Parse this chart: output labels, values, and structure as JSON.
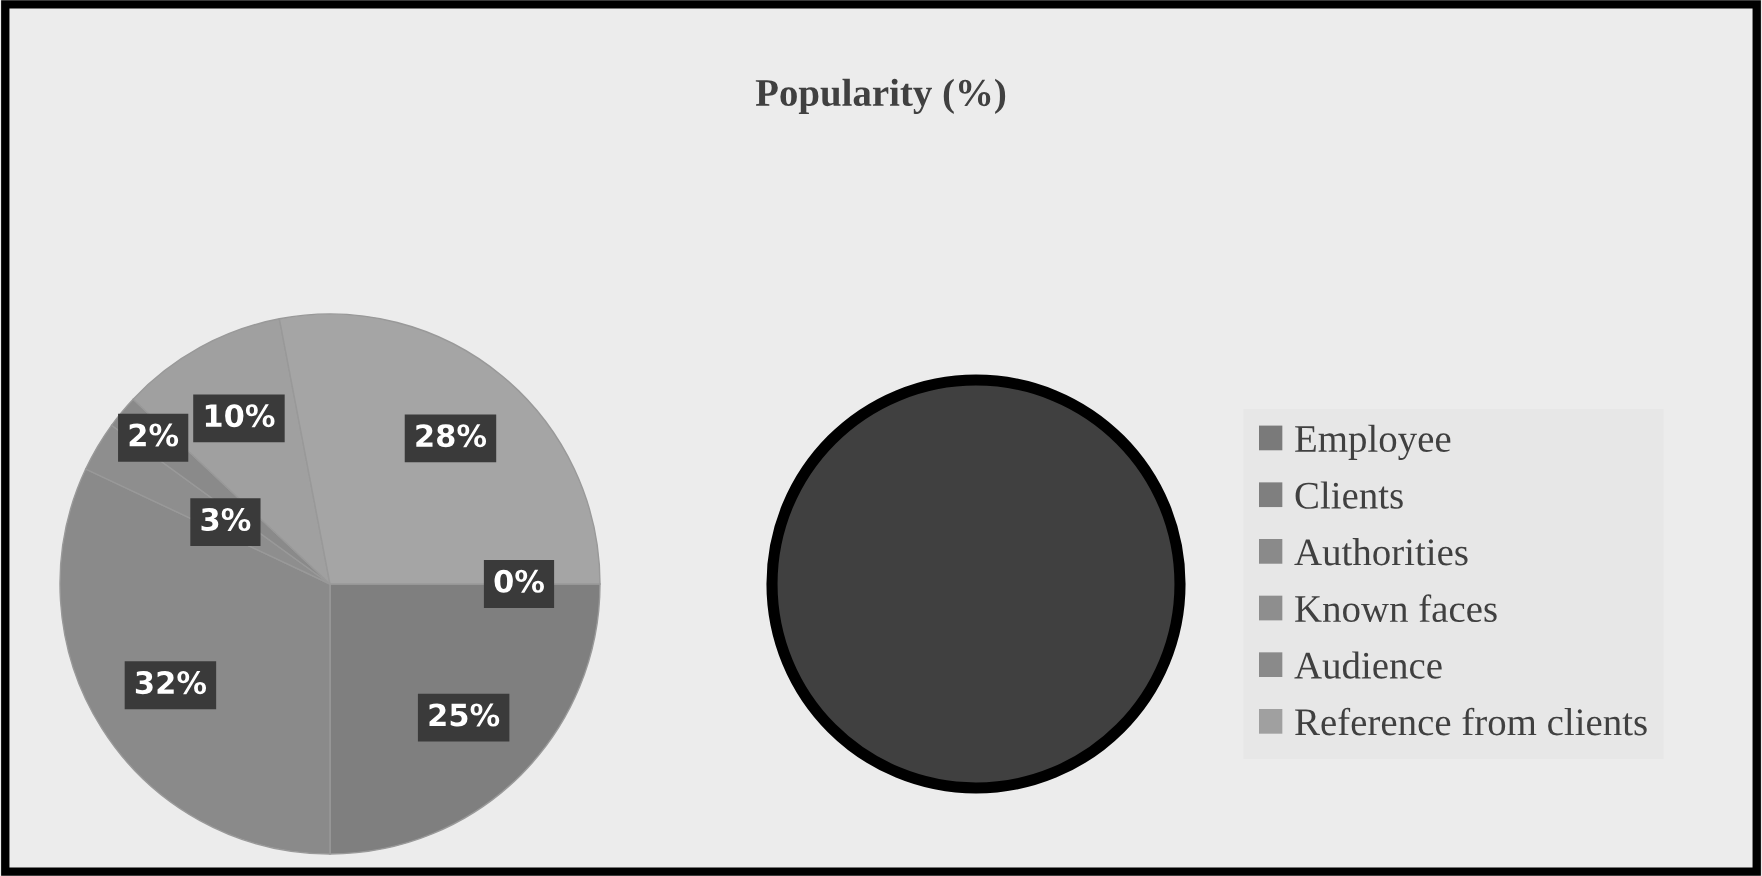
{
  "chart_data": {
    "type": "pie",
    "title": "Popularity (%)",
    "categories": [
      "Employee",
      "Clients",
      "Authorities",
      "Known faces",
      "Audience",
      "Reference from clients",
      null
    ],
    "values": [
      0,
      25,
      32,
      3,
      2,
      10,
      28
    ],
    "value_labels": [
      "0%",
      "25%",
      "32%",
      "3%",
      "2%",
      "10%",
      "28%"
    ],
    "colors": [
      "#7a7a7a",
      "#7f7f7f",
      "#8a8a8a",
      "#8e8e8e",
      "#8a8a8a",
      "#a0a0a0",
      "#a5a5a5"
    ],
    "legend": "right"
  }
}
